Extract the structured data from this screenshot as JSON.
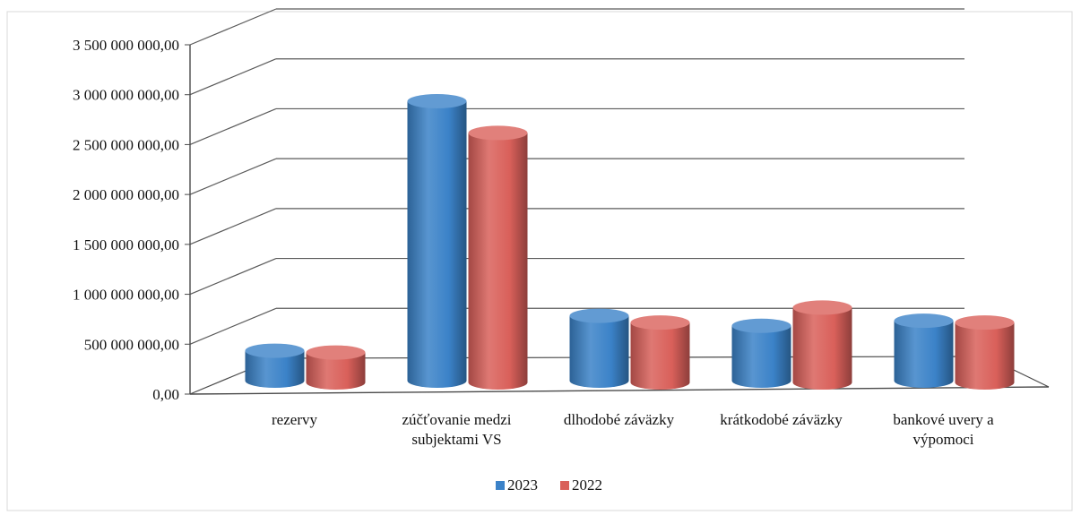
{
  "chart_data": {
    "type": "bar",
    "categories": [
      [
        "rezervy"
      ],
      [
        "zúčťovanie medzi",
        "subjektami VS"
      ],
      [
        "dlhodobé záväzky"
      ],
      [
        "krátkodobé záväzky"
      ],
      [
        "bankové uvery a",
        "výpomoci"
      ]
    ],
    "series": [
      {
        "name": "2023",
        "color": "#3B82C8",
        "values": [
          300000000,
          2800000000,
          650000000,
          550000000,
          600000000
        ]
      },
      {
        "name": "2022",
        "color": "#D9605A",
        "values": [
          300000000,
          2500000000,
          600000000,
          750000000,
          600000000
        ]
      }
    ],
    "ylim": [
      0,
      3500000000
    ],
    "yticks": [
      0,
      500000000,
      1000000000,
      1500000000,
      2000000000,
      2500000000,
      3000000000,
      3500000000
    ],
    "ytick_labels": [
      "0,00",
      "500 000 000,00",
      "1 000 000 000,00",
      "1 500 000 000,00",
      "2 000 000 000,00",
      "2 500 000 000,00",
      "3 000 000 000,00",
      "3 500 000 000,00"
    ],
    "grid": true,
    "legend_position": "bottom",
    "style": "3d-cylinder"
  }
}
